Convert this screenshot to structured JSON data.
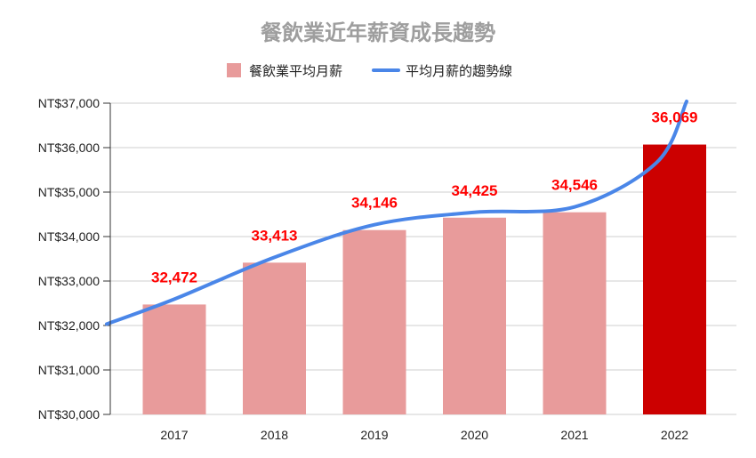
{
  "chart_data": {
    "type": "bar",
    "title": "餐飲業近年薪資成長趨勢",
    "categories": [
      "2017",
      "2018",
      "2019",
      "2020",
      "2021",
      "2022"
    ],
    "series": [
      {
        "name": "餐飲業平均月薪",
        "values": [
          32472,
          33413,
          34146,
          34425,
          34546,
          36069
        ],
        "data_labels": [
          "32,472",
          "33,413",
          "34,146",
          "34,425",
          "34,546",
          "36,069"
        ],
        "colors": [
          "#e89b9b",
          "#e89b9b",
          "#e89b9b",
          "#e89b9b",
          "#e89b9b",
          "#cc0000"
        ]
      },
      {
        "name": "平均月薪的趨勢線",
        "type": "line",
        "color": "#4a86e8"
      }
    ],
    "ylim": [
      30000,
      37000
    ],
    "yticks": [
      30000,
      31000,
      32000,
      33000,
      34000,
      35000,
      36000,
      37000
    ],
    "ytick_labels": [
      "NT$30,000",
      "NT$31,000",
      "NT$32,000",
      "NT$33,000",
      "NT$34,000",
      "NT$35,000",
      "NT$36,000",
      "NT$37,000"
    ],
    "grid": true,
    "legend_position": "top"
  }
}
